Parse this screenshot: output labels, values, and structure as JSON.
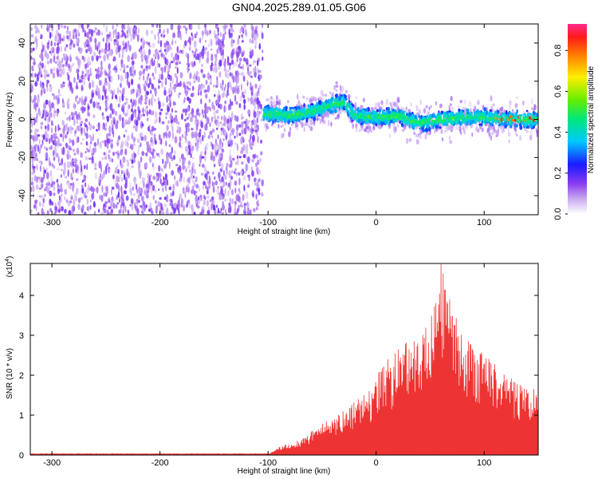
{
  "title": "GN04.2025.289.01.05.G06",
  "chart_data": [
    {
      "type": "heatmap",
      "title": "GN04.2025.289.01.05.G06",
      "xlabel": "Height of straight line (km)",
      "ylabel": "Frequency (Hz)",
      "xlim": [
        -320,
        150
      ],
      "ylim": [
        -50,
        50
      ],
      "xticks": [
        -300,
        -200,
        -100,
        0,
        100
      ],
      "yticks": [
        -40,
        -20,
        0,
        20,
        40
      ],
      "noise_region": [
        -320,
        -105
      ],
      "signal_center_track": [
        {
          "x": -100,
          "y": 3
        },
        {
          "x": -80,
          "y": 2
        },
        {
          "x": -60,
          "y": 4
        },
        {
          "x": -40,
          "y": 8
        },
        {
          "x": -30,
          "y": 9
        },
        {
          "x": -20,
          "y": 2
        },
        {
          "x": 0,
          "y": 1
        },
        {
          "x": 20,
          "y": 2
        },
        {
          "x": 40,
          "y": -2
        },
        {
          "x": 60,
          "y": 0
        },
        {
          "x": 80,
          "y": 1
        },
        {
          "x": 100,
          "y": 1
        },
        {
          "x": 120,
          "y": 0
        },
        {
          "x": 150,
          "y": 0
        }
      ],
      "colorbar": {
        "label": "Normalized spectral amplitude",
        "range": [
          0,
          0.93
        ],
        "ticks": [
          "0.0",
          "0.2",
          "0.4",
          "0.6",
          "0.8"
        ]
      }
    },
    {
      "type": "area",
      "xlabel": "Height of straight line (km)",
      "ylabel": "SNR (10 * v/v)",
      "y_scale_label": "(x10",
      "y_scale_exp": "4",
      "xlim": [
        -320,
        150
      ],
      "ylim": [
        0,
        4.8
      ],
      "xticks": [
        -300,
        -200,
        -100,
        0,
        100
      ],
      "yticks": [
        0,
        1,
        2,
        3,
        4
      ],
      "color": "#ee3333",
      "envelope": [
        {
          "x": -320,
          "y": 0.02
        },
        {
          "x": -100,
          "y": 0.03
        },
        {
          "x": -90,
          "y": 0.2
        },
        {
          "x": -70,
          "y": 0.4
        },
        {
          "x": -50,
          "y": 0.8
        },
        {
          "x": -30,
          "y": 1.1
        },
        {
          "x": -10,
          "y": 1.6
        },
        {
          "x": 10,
          "y": 2.4
        },
        {
          "x": 30,
          "y": 2.9
        },
        {
          "x": 50,
          "y": 3.3
        },
        {
          "x": 60,
          "y": 4.8
        },
        {
          "x": 80,
          "y": 3.0
        },
        {
          "x": 100,
          "y": 2.6
        },
        {
          "x": 120,
          "y": 2.0
        },
        {
          "x": 150,
          "y": 1.6
        }
      ]
    }
  ]
}
